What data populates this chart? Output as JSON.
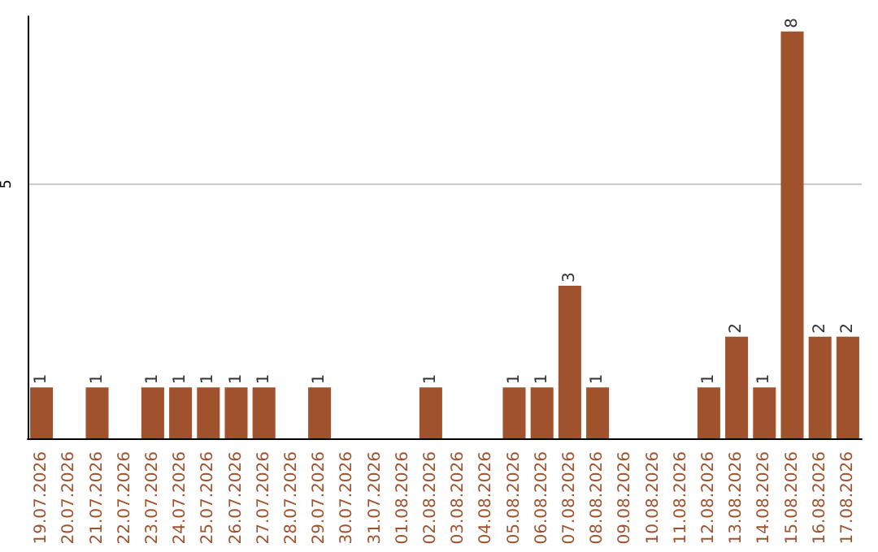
{
  "chart_data": {
    "type": "bar",
    "categories": [
      "19.07.2026",
      "20.07.2026",
      "21.07.2026",
      "22.07.2026",
      "23.07.2026",
      "24.07.2026",
      "25.07.2026",
      "26.07.2026",
      "27.07.2026",
      "28.07.2026",
      "29.07.2026",
      "30.07.2026",
      "31.07.2026",
      "01.08.2026",
      "02.08.2026",
      "03.08.2026",
      "04.08.2026",
      "05.08.2026",
      "06.08.2026",
      "07.08.2026",
      "08.08.2026",
      "09.08.2026",
      "10.08.2026",
      "11.08.2026",
      "12.08.2026",
      "13.08.2026",
      "14.08.2026",
      "15.08.2026",
      "16.08.2026",
      "17.08.2026"
    ],
    "values": [
      1,
      0,
      1,
      0,
      1,
      1,
      1,
      1,
      1,
      0,
      1,
      0,
      0,
      0,
      1,
      0,
      0,
      1,
      1,
      3,
      1,
      0,
      0,
      0,
      1,
      2,
      1,
      8,
      2,
      2
    ],
    "value_labels": [
      "1",
      null,
      "1",
      null,
      "1",
      "1",
      "1",
      "1",
      "1",
      null,
      "1",
      null,
      null,
      null,
      "1",
      null,
      null,
      "1",
      "1",
      "3",
      "1",
      null,
      null,
      null,
      "1",
      "2",
      "1",
      "8",
      "2",
      "2"
    ],
    "color": "#a0522d",
    "ylim": [
      0,
      8.3
    ],
    "yticks": [
      5
    ],
    "grid": "y"
  }
}
